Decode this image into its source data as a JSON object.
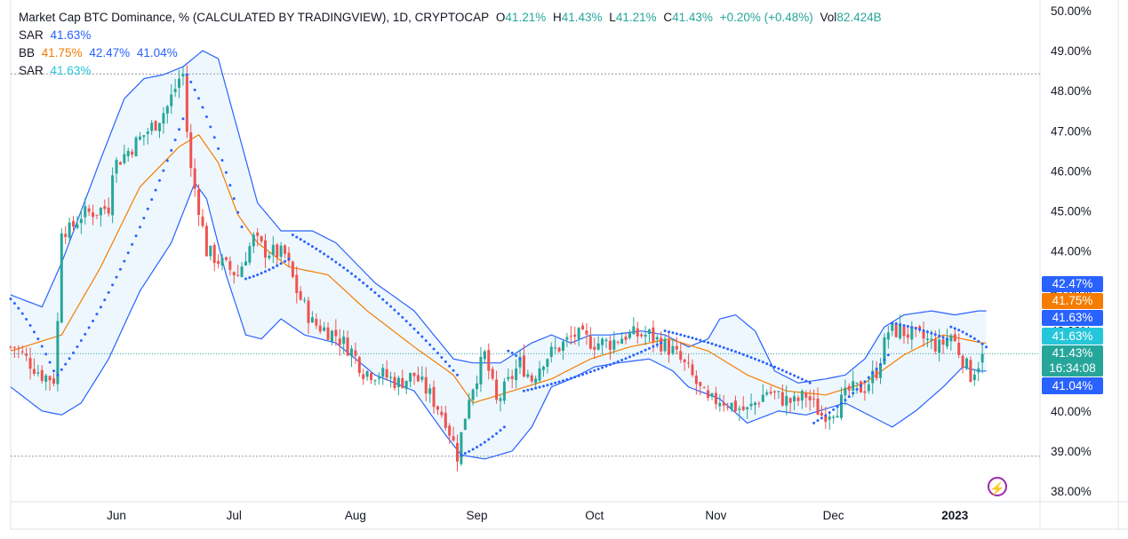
{
  "legend": {
    "title": "Market Cap BTC Dominance, % (CALCULATED BY TRADINGVIEW), 1D, CRYPTOCAP",
    "o_key": "O",
    "o_val": "41.21%",
    "h_key": "H",
    "h_val": "41.43%",
    "l_key": "L",
    "l_val": "41.21%",
    "c_key": "C",
    "c_val": "41.43%",
    "change": "+0.20% (+0.48%)",
    "vol_key": "Vol",
    "vol_val": "82.424B",
    "sar1_name": "SAR",
    "sar1_val": "41.63%",
    "bb_name": "BB",
    "bb_mid": "41.75%",
    "bb_upper": "42.47%",
    "bb_lower": "41.04%",
    "sar2_name": "SAR",
    "sar2_val": "41.63%"
  },
  "price_tags": {
    "bb_upper": "42.47%",
    "bb_mid": "41.75%",
    "sar1": "41.63%",
    "sar2": "41.63%",
    "last_price": "41.43%",
    "countdown": "16:34:08",
    "bb_lower": "41.04%"
  },
  "colors": {
    "up": "#26a69a",
    "down": "#ef5350",
    "bb_band": "#2962ff",
    "bb_mid": "#f57c00",
    "sar": "#2962ff",
    "fill": "rgba(33,150,243,0.07)",
    "tag_blue": "#2962ff",
    "tag_orange": "#f57c00",
    "tag_teal": "#26c6da",
    "tag_green": "#26a69a"
  },
  "icons": {
    "replay": "lightning-icon"
  },
  "chart_data": {
    "type": "candlestick",
    "ylim": [
      37.8,
      50.2
    ],
    "y_ticks": [
      "50.00%",
      "49.00%",
      "48.00%",
      "47.00%",
      "46.00%",
      "45.00%",
      "44.00%",
      "43.00%",
      "42.00%",
      "41.00%",
      "40.00%",
      "39.00%",
      "38.00%"
    ],
    "y_tick_values": [
      50,
      49,
      48,
      47,
      46,
      45,
      44,
      43,
      42,
      41,
      40,
      39,
      38
    ],
    "x_ticks": [
      "Jun",
      "Jul",
      "Aug",
      "Sep",
      "Oct",
      "Nov",
      "Dec",
      "2023"
    ],
    "x_tick_days": [
      24,
      54,
      85,
      116,
      146,
      177,
      207,
      238
    ],
    "x_range_days": [
      -3,
      252
    ],
    "reference_lines": [
      48.42,
      38.87
    ],
    "last_price": 41.43,
    "close_anchors": [
      [
        -2,
        41.6
      ],
      [
        5,
        40.9
      ],
      [
        8,
        40.8
      ],
      [
        9,
        42.2
      ],
      [
        10,
        44.6
      ],
      [
        12,
        44.5
      ],
      [
        15,
        44.9
      ],
      [
        19,
        45.0
      ],
      [
        22,
        45.1
      ],
      [
        23,
        46.1
      ],
      [
        26,
        46.4
      ],
      [
        30,
        46.8
      ],
      [
        34,
        47.2
      ],
      [
        37,
        47.6
      ],
      [
        40,
        48.3
      ],
      [
        41,
        48.4
      ],
      [
        42,
        47.0
      ],
      [
        43,
        46.0
      ],
      [
        45,
        45.1
      ],
      [
        47,
        44.0
      ],
      [
        52,
        43.6
      ],
      [
        55,
        43.4
      ],
      [
        57,
        43.9
      ],
      [
        59,
        44.3
      ],
      [
        62,
        44.0
      ],
      [
        67,
        43.9
      ],
      [
        70,
        43.0
      ],
      [
        74,
        42.2
      ],
      [
        80,
        41.9
      ],
      [
        84,
        41.5
      ],
      [
        87,
        41.0
      ],
      [
        92,
        40.9
      ],
      [
        96,
        40.7
      ],
      [
        100,
        40.9
      ],
      [
        104,
        40.4
      ],
      [
        108,
        39.8
      ],
      [
        111,
        38.9
      ],
      [
        114,
        40.4
      ],
      [
        118,
        41.4
      ],
      [
        121,
        40.2
      ],
      [
        124,
        40.7
      ],
      [
        127,
        41.2
      ],
      [
        130,
        40.8
      ],
      [
        133,
        41.3
      ],
      [
        137,
        41.6
      ],
      [
        141,
        41.9
      ],
      [
        146,
        41.7
      ],
      [
        150,
        41.7
      ],
      [
        154,
        41.9
      ],
      [
        160,
        41.9
      ],
      [
        166,
        41.5
      ],
      [
        170,
        41.0
      ],
      [
        175,
        40.2
      ],
      [
        178,
        40.3
      ],
      [
        182,
        40.1
      ],
      [
        185,
        40.0
      ],
      [
        190,
        40.5
      ],
      [
        194,
        40.3
      ],
      [
        197,
        40.2
      ],
      [
        200,
        40.4
      ],
      [
        204,
        39.9
      ],
      [
        208,
        40.1
      ],
      [
        211,
        40.5
      ],
      [
        215,
        40.6
      ],
      [
        218,
        41.0
      ],
      [
        221,
        42.0
      ],
      [
        224,
        42.0
      ],
      [
        227,
        41.9
      ],
      [
        230,
        41.8
      ],
      [
        234,
        41.6
      ],
      [
        237,
        41.9
      ],
      [
        240,
        41.3
      ],
      [
        242,
        40.9
      ],
      [
        244,
        41.2
      ],
      [
        245,
        41.43
      ]
    ],
    "bb_upper_anchors": [
      [
        -3,
        42.9
      ],
      [
        5,
        42.6
      ],
      [
        10,
        43.7
      ],
      [
        20,
        46.3
      ],
      [
        26,
        47.8
      ],
      [
        31,
        48.3
      ],
      [
        36,
        48.4
      ],
      [
        41,
        48.6
      ],
      [
        46,
        49.0
      ],
      [
        50,
        48.8
      ],
      [
        55,
        47.0
      ],
      [
        60,
        45.2
      ],
      [
        66,
        44.5
      ],
      [
        74,
        44.5
      ],
      [
        80,
        44.2
      ],
      [
        90,
        43.2
      ],
      [
        100,
        42.5
      ],
      [
        110,
        41.3
      ],
      [
        115,
        41.2
      ],
      [
        122,
        41.2
      ],
      [
        130,
        41.7
      ],
      [
        135,
        41.9
      ],
      [
        140,
        41.7
      ],
      [
        145,
        41.9
      ],
      [
        150,
        41.9
      ],
      [
        158,
        42.0
      ],
      [
        164,
        41.9
      ],
      [
        170,
        41.6
      ],
      [
        175,
        41.8
      ],
      [
        178,
        42.3
      ],
      [
        182,
        42.4
      ],
      [
        187,
        42.0
      ],
      [
        192,
        41.0
      ],
      [
        198,
        40.7
      ],
      [
        205,
        40.8
      ],
      [
        210,
        40.9
      ],
      [
        215,
        41.3
      ],
      [
        220,
        42.1
      ],
      [
        225,
        42.4
      ],
      [
        232,
        42.5
      ],
      [
        238,
        42.4
      ],
      [
        244,
        42.5
      ],
      [
        246,
        42.5
      ]
    ],
    "bb_mid_anchors": [
      [
        -3,
        41.5
      ],
      [
        10,
        41.9
      ],
      [
        20,
        43.6
      ],
      [
        30,
        45.6
      ],
      [
        40,
        46.6
      ],
      [
        45,
        46.9
      ],
      [
        50,
        46.2
      ],
      [
        55,
        44.9
      ],
      [
        60,
        44.2
      ],
      [
        68,
        43.6
      ],
      [
        78,
        43.4
      ],
      [
        88,
        42.5
      ],
      [
        100,
        41.6
      ],
      [
        110,
        40.9
      ],
      [
        115,
        40.2
      ],
      [
        125,
        40.5
      ],
      [
        135,
        40.8
      ],
      [
        145,
        41.3
      ],
      [
        155,
        41.6
      ],
      [
        165,
        41.8
      ],
      [
        175,
        41.5
      ],
      [
        185,
        40.9
      ],
      [
        195,
        40.5
      ],
      [
        205,
        40.4
      ],
      [
        215,
        40.7
      ],
      [
        225,
        41.4
      ],
      [
        235,
        41.9
      ],
      [
        245,
        41.7
      ]
    ],
    "bb_lower_anchors": [
      [
        -3,
        40.6
      ],
      [
        5,
        40.0
      ],
      [
        10,
        39.9
      ],
      [
        15,
        40.2
      ],
      [
        22,
        41.3
      ],
      [
        30,
        43.0
      ],
      [
        38,
        44.2
      ],
      [
        44,
        45.7
      ],
      [
        47,
        45.3
      ],
      [
        52,
        43.4
      ],
      [
        57,
        41.9
      ],
      [
        61,
        41.8
      ],
      [
        66,
        42.3
      ],
      [
        72,
        41.9
      ],
      [
        80,
        41.7
      ],
      [
        90,
        40.9
      ],
      [
        100,
        40.5
      ],
      [
        108,
        39.4
      ],
      [
        112,
        38.9
      ],
      [
        118,
        38.8
      ],
      [
        125,
        39.0
      ],
      [
        130,
        39.6
      ],
      [
        135,
        40.6
      ],
      [
        140,
        40.8
      ],
      [
        146,
        41.1
      ],
      [
        152,
        41.2
      ],
      [
        160,
        41.3
      ],
      [
        166,
        41.0
      ],
      [
        170,
        40.6
      ],
      [
        178,
        40.3
      ],
      [
        185,
        39.7
      ],
      [
        193,
        40.0
      ],
      [
        200,
        39.9
      ],
      [
        210,
        40.2
      ],
      [
        218,
        39.8
      ],
      [
        222,
        39.6
      ],
      [
        228,
        40.0
      ],
      [
        235,
        40.6
      ],
      [
        240,
        41.1
      ],
      [
        244,
        41.0
      ],
      [
        246,
        41.0
      ]
    ],
    "sar_segments": [
      {
        "days": [
          -3,
          8
        ],
        "start": 42.8,
        "end": 41.0
      },
      {
        "days": [
          9,
          41
        ],
        "start": 40.9,
        "end": 47.3
      },
      {
        "days": [
          42,
          56
        ],
        "start": 48.4,
        "end": 44.6
      },
      {
        "days": [
          57,
          68
        ],
        "start": 43.3,
        "end": 43.8
      },
      {
        "days": [
          69,
          111
        ],
        "start": 44.4,
        "end": 40.9
      },
      {
        "days": [
          112,
          123
        ],
        "start": 38.9,
        "end": 39.6
      },
      {
        "days": [
          124,
          127
        ],
        "start": 41.5,
        "end": 41.3
      },
      {
        "days": [
          128,
          163
        ],
        "start": 40.5,
        "end": 41.7
      },
      {
        "days": [
          164,
          201
        ],
        "start": 42.0,
        "end": 40.7
      },
      {
        "days": [
          202,
          221
        ],
        "start": 39.7,
        "end": 41.4
      },
      {
        "days": [
          222,
          236
        ],
        "start": 42.2,
        "end": 41.8
      },
      {
        "days": [
          237,
          246
        ],
        "start": 42.1,
        "end": 41.6
      }
    ]
  }
}
